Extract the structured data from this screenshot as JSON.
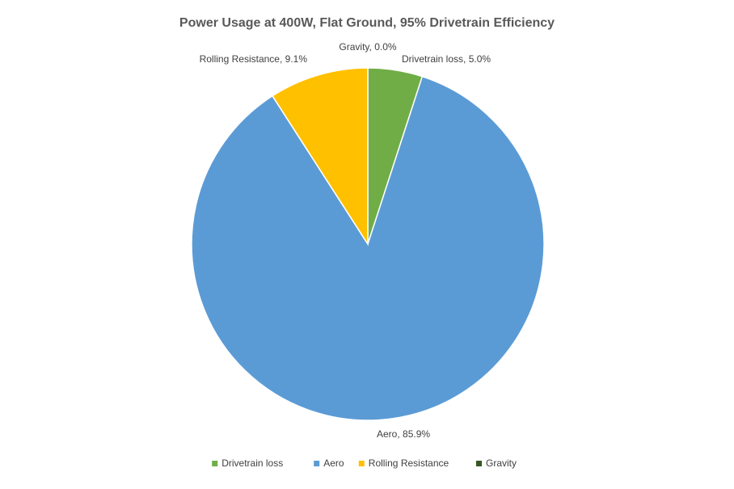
{
  "chart_data": {
    "type": "pie",
    "title": "Power Usage at 400W, Flat Ground, 95% Drivetrain Efficiency",
    "slices": [
      {
        "name": "Drivetrain loss",
        "value": 5.0,
        "label": "Drivetrain loss, 5.0%",
        "color": "#70ad47"
      },
      {
        "name": "Aero",
        "value": 85.9,
        "label": "Aero, 85.9%",
        "color": "#5b9bd5"
      },
      {
        "name": "Rolling Resistance",
        "value": 9.1,
        "label": "Rolling Resistance, 9.1%",
        "color": "#ffc000"
      },
      {
        "name": "Gravity",
        "value": 0.0,
        "label": "Gravity, 0.0%",
        "color": "#375623"
      }
    ],
    "unit": "%",
    "start": "12 o'clock",
    "direction": "clockwise",
    "legend_position": "bottom"
  }
}
